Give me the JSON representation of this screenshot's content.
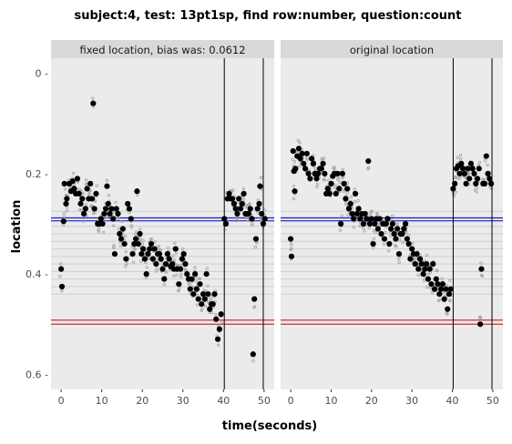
{
  "chart_data": {
    "type": "scatter",
    "title": "subject:4, test: 13pt1sp, find row:number, question:count",
    "xlabel": "time(seconds)",
    "ylabel": "location",
    "xlim": [
      -2.5,
      52.5
    ],
    "ylim": [
      0.63,
      -0.03
    ],
    "x_ticks": [
      0,
      10,
      20,
      30,
      40,
      50
    ],
    "y_ticks": [
      0,
      0.2,
      0.4,
      0.6
    ],
    "y_tick_labels": [
      "0 -",
      "0.2 -",
      "0.4 -",
      "0.6 -"
    ],
    "grid": true,
    "colors": {
      "panel_bg": "#ebebeb",
      "strip_bg": "#d9d9d9",
      "fixation": "#000000",
      "raw_sample": "#9e9e9e",
      "blue_line": "#0000cc",
      "red_line": "#cc0000",
      "row_line": "#cfcfcf",
      "vline": "#000000"
    },
    "panels": [
      {
        "label": "fixed location, bias was: 0.0612",
        "vlines": [
          40.2,
          49.8
        ],
        "blue_lines": [
          0.288,
          0.294
        ],
        "red_lines": [
          0.492,
          0.5
        ],
        "row_lines": [
          0.275,
          0.29,
          0.305,
          0.32,
          0.335,
          0.35,
          0.365,
          0.38,
          0.395,
          0.41,
          0.425,
          0.44
        ],
        "fixations": [
          [
            0.0,
            0.39
          ],
          [
            0.2,
            0.425
          ],
          [
            0.6,
            0.295
          ],
          [
            0.8,
            0.22
          ],
          [
            1.2,
            0.26
          ],
          [
            1.4,
            0.25
          ],
          [
            2.0,
            0.22
          ],
          [
            2.4,
            0.235
          ],
          [
            2.8,
            0.215
          ],
          [
            3.2,
            0.23
          ],
          [
            3.6,
            0.24
          ],
          [
            4.0,
            0.21
          ],
          [
            4.4,
            0.24
          ],
          [
            4.8,
            0.26
          ],
          [
            5.2,
            0.25
          ],
          [
            5.6,
            0.28
          ],
          [
            6.0,
            0.27
          ],
          [
            6.4,
            0.23
          ],
          [
            6.8,
            0.25
          ],
          [
            7.2,
            0.22
          ],
          [
            7.6,
            0.25
          ],
          [
            7.9,
            0.06
          ],
          [
            8.2,
            0.27
          ],
          [
            8.6,
            0.24
          ],
          [
            9.0,
            0.3
          ],
          [
            9.4,
            0.3
          ],
          [
            9.8,
            0.29
          ],
          [
            10.2,
            0.3
          ],
          [
            10.6,
            0.28
          ],
          [
            11.0,
            0.27
          ],
          [
            11.3,
            0.225
          ],
          [
            11.6,
            0.26
          ],
          [
            12.0,
            0.28
          ],
          [
            12.4,
            0.27
          ],
          [
            12.8,
            0.29
          ],
          [
            13.2,
            0.36
          ],
          [
            13.6,
            0.27
          ],
          [
            14.0,
            0.28
          ],
          [
            14.4,
            0.32
          ],
          [
            14.8,
            0.33
          ],
          [
            15.2,
            0.31
          ],
          [
            15.6,
            0.34
          ],
          [
            16.0,
            0.37
          ],
          [
            16.4,
            0.26
          ],
          [
            16.8,
            0.27
          ],
          [
            17.2,
            0.29
          ],
          [
            17.6,
            0.36
          ],
          [
            18.0,
            0.34
          ],
          [
            18.4,
            0.33
          ],
          [
            18.7,
            0.235
          ],
          [
            19.0,
            0.34
          ],
          [
            19.4,
            0.32
          ],
          [
            19.8,
            0.36
          ],
          [
            20.2,
            0.35
          ],
          [
            20.6,
            0.37
          ],
          [
            21.0,
            0.4
          ],
          [
            21.4,
            0.36
          ],
          [
            21.8,
            0.35
          ],
          [
            22.2,
            0.34
          ],
          [
            22.6,
            0.37
          ],
          [
            23.0,
            0.35
          ],
          [
            23.4,
            0.38
          ],
          [
            23.8,
            0.36
          ],
          [
            24.2,
            0.36
          ],
          [
            24.6,
            0.37
          ],
          [
            25.0,
            0.39
          ],
          [
            25.4,
            0.41
          ],
          [
            25.8,
            0.38
          ],
          [
            26.2,
            0.36
          ],
          [
            26.6,
            0.37
          ],
          [
            27.0,
            0.385
          ],
          [
            27.4,
            0.38
          ],
          [
            27.8,
            0.39
          ],
          [
            28.2,
            0.35
          ],
          [
            28.6,
            0.39
          ],
          [
            29.0,
            0.42
          ],
          [
            29.4,
            0.39
          ],
          [
            29.8,
            0.37
          ],
          [
            30.2,
            0.36
          ],
          [
            30.6,
            0.38
          ],
          [
            31.0,
            0.4
          ],
          [
            31.4,
            0.41
          ],
          [
            31.8,
            0.43
          ],
          [
            32.2,
            0.41
          ],
          [
            32.6,
            0.44
          ],
          [
            33.0,
            0.4
          ],
          [
            33.4,
            0.43
          ],
          [
            33.8,
            0.45
          ],
          [
            34.2,
            0.42
          ],
          [
            34.6,
            0.46
          ],
          [
            35.0,
            0.44
          ],
          [
            35.4,
            0.45
          ],
          [
            35.8,
            0.4
          ],
          [
            36.2,
            0.44
          ],
          [
            36.6,
            0.47
          ],
          [
            37.0,
            0.46
          ],
          [
            37.4,
            0.46
          ],
          [
            37.8,
            0.44
          ],
          [
            38.2,
            0.49
          ],
          [
            38.6,
            0.53
          ],
          [
            39.0,
            0.51
          ],
          [
            39.4,
            0.48
          ],
          [
            40.2,
            0.29
          ],
          [
            40.6,
            0.3
          ],
          [
            41.0,
            0.25
          ],
          [
            41.4,
            0.24
          ],
          [
            41.8,
            0.25
          ],
          [
            42.2,
            0.25
          ],
          [
            42.6,
            0.26
          ],
          [
            43.0,
            0.27
          ],
          [
            43.4,
            0.28
          ],
          [
            43.8,
            0.25
          ],
          [
            44.2,
            0.27
          ],
          [
            44.6,
            0.26
          ],
          [
            45.0,
            0.24
          ],
          [
            45.4,
            0.28
          ],
          [
            45.8,
            0.28
          ],
          [
            46.2,
            0.28
          ],
          [
            46.6,
            0.27
          ],
          [
            47.0,
            0.29
          ],
          [
            47.3,
            0.56
          ],
          [
            47.6,
            0.45
          ],
          [
            48.0,
            0.33
          ],
          [
            48.4,
            0.27
          ],
          [
            48.8,
            0.26
          ],
          [
            49.0,
            0.225
          ],
          [
            49.4,
            0.28
          ],
          [
            49.8,
            0.3
          ],
          [
            50.2,
            0.29
          ]
        ]
      },
      {
        "label": "original location",
        "vlines": [
          40.2,
          49.8
        ],
        "blue_lines": [
          0.288,
          0.294
        ],
        "red_lines": [
          0.492,
          0.5
        ],
        "row_lines": [
          0.275,
          0.29,
          0.305,
          0.32,
          0.335,
          0.35,
          0.365,
          0.38,
          0.395,
          0.41,
          0.425,
          0.44
        ],
        "fixations": [
          [
            0.0,
            0.33
          ],
          [
            0.2,
            0.365
          ],
          [
            0.6,
            0.155
          ],
          [
            0.8,
            0.195
          ],
          [
            1.0,
            0.235
          ],
          [
            1.2,
            0.19
          ],
          [
            1.6,
            0.165
          ],
          [
            2.0,
            0.15
          ],
          [
            2.4,
            0.17
          ],
          [
            2.8,
            0.16
          ],
          [
            3.2,
            0.18
          ],
          [
            3.6,
            0.19
          ],
          [
            4.0,
            0.16
          ],
          [
            4.4,
            0.2
          ],
          [
            4.8,
            0.21
          ],
          [
            5.2,
            0.17
          ],
          [
            5.6,
            0.18
          ],
          [
            6.0,
            0.2
          ],
          [
            6.4,
            0.21
          ],
          [
            6.8,
            0.2
          ],
          [
            7.2,
            0.19
          ],
          [
            7.6,
            0.19
          ],
          [
            8.0,
            0.18
          ],
          [
            8.4,
            0.2
          ],
          [
            8.8,
            0.24
          ],
          [
            9.2,
            0.23
          ],
          [
            9.6,
            0.24
          ],
          [
            10.0,
            0.22
          ],
          [
            10.4,
            0.205
          ],
          [
            10.8,
            0.2
          ],
          [
            11.2,
            0.24
          ],
          [
            11.6,
            0.2
          ],
          [
            12.0,
            0.23
          ],
          [
            12.4,
            0.3
          ],
          [
            12.8,
            0.2
          ],
          [
            13.2,
            0.22
          ],
          [
            13.6,
            0.25
          ],
          [
            14.0,
            0.23
          ],
          [
            14.4,
            0.27
          ],
          [
            14.8,
            0.26
          ],
          [
            15.2,
            0.28
          ],
          [
            15.6,
            0.29
          ],
          [
            16.0,
            0.24
          ],
          [
            16.4,
            0.28
          ],
          [
            16.8,
            0.27
          ],
          [
            17.2,
            0.29
          ],
          [
            17.6,
            0.28
          ],
          [
            18.0,
            0.3
          ],
          [
            18.4,
            0.28
          ],
          [
            18.8,
            0.29
          ],
          [
            19.2,
            0.175
          ],
          [
            19.6,
            0.3
          ],
          [
            20.0,
            0.29
          ],
          [
            20.4,
            0.34
          ],
          [
            20.8,
            0.3
          ],
          [
            21.2,
            0.29
          ],
          [
            21.6,
            0.31
          ],
          [
            22.0,
            0.29
          ],
          [
            22.4,
            0.32
          ],
          [
            22.8,
            0.3
          ],
          [
            23.2,
            0.33
          ],
          [
            23.6,
            0.3
          ],
          [
            24.0,
            0.29
          ],
          [
            24.4,
            0.34
          ],
          [
            24.8,
            0.31
          ],
          [
            25.2,
            0.3
          ],
          [
            25.6,
            0.32
          ],
          [
            26.0,
            0.33
          ],
          [
            26.4,
            0.31
          ],
          [
            26.8,
            0.36
          ],
          [
            27.2,
            0.32
          ],
          [
            27.6,
            0.32
          ],
          [
            28.0,
            0.31
          ],
          [
            28.4,
            0.3
          ],
          [
            28.8,
            0.33
          ],
          [
            29.2,
            0.34
          ],
          [
            29.6,
            0.37
          ],
          [
            30.0,
            0.35
          ],
          [
            30.4,
            0.36
          ],
          [
            30.8,
            0.38
          ],
          [
            31.2,
            0.36
          ],
          [
            31.6,
            0.39
          ],
          [
            32.0,
            0.37
          ],
          [
            32.4,
            0.38
          ],
          [
            32.8,
            0.4
          ],
          [
            33.2,
            0.39
          ],
          [
            33.6,
            0.38
          ],
          [
            34.0,
            0.41
          ],
          [
            34.4,
            0.39
          ],
          [
            34.8,
            0.42
          ],
          [
            35.2,
            0.38
          ],
          [
            35.6,
            0.43
          ],
          [
            36.0,
            0.41
          ],
          [
            36.4,
            0.42
          ],
          [
            36.8,
            0.44
          ],
          [
            37.2,
            0.43
          ],
          [
            37.6,
            0.42
          ],
          [
            38.0,
            0.45
          ],
          [
            38.4,
            0.43
          ],
          [
            38.8,
            0.47
          ],
          [
            39.2,
            0.44
          ],
          [
            39.6,
            0.43
          ],
          [
            40.2,
            0.23
          ],
          [
            40.6,
            0.22
          ],
          [
            41.0,
            0.19
          ],
          [
            41.4,
            0.185
          ],
          [
            41.8,
            0.2
          ],
          [
            42.2,
            0.18
          ],
          [
            42.6,
            0.19
          ],
          [
            43.0,
            0.2
          ],
          [
            43.4,
            0.22
          ],
          [
            43.8,
            0.19
          ],
          [
            44.2,
            0.21
          ],
          [
            44.6,
            0.18
          ],
          [
            45.0,
            0.19
          ],
          [
            45.4,
            0.2
          ],
          [
            45.8,
            0.22
          ],
          [
            46.2,
            0.21
          ],
          [
            46.6,
            0.19
          ],
          [
            46.9,
            0.5
          ],
          [
            47.2,
            0.39
          ],
          [
            47.6,
            0.22
          ],
          [
            48.0,
            0.22
          ],
          [
            48.4,
            0.165
          ],
          [
            48.8,
            0.2
          ],
          [
            49.2,
            0.21
          ],
          [
            49.6,
            0.22
          ]
        ]
      }
    ]
  }
}
